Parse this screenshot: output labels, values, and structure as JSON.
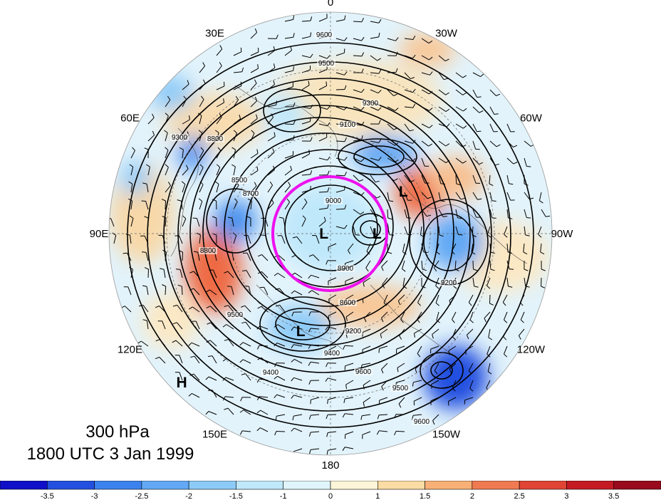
{
  "caption": {
    "level": "300 hPa",
    "time": "1800 UTC 3 Jan 1999"
  },
  "longitude_labels": [
    {
      "text": "0",
      "angle_deg": 0
    },
    {
      "text": "30W",
      "angle_deg": 30
    },
    {
      "text": "60W",
      "angle_deg": 60
    },
    {
      "text": "90W",
      "angle_deg": 90
    },
    {
      "text": "120W",
      "angle_deg": 120
    },
    {
      "text": "150W",
      "angle_deg": 150
    },
    {
      "text": "180",
      "angle_deg": 180
    },
    {
      "text": "150E",
      "angle_deg": 210
    },
    {
      "text": "120E",
      "angle_deg": 240
    },
    {
      "text": "90E",
      "angle_deg": 270
    },
    {
      "text": "60E",
      "angle_deg": 300
    },
    {
      "text": "30E",
      "angle_deg": 330
    }
  ],
  "pressure_centers": [
    {
      "label": "L",
      "lon_angle_deg": 60,
      "radius_frac": 0.38
    },
    {
      "label": "L",
      "lon_angle_deg": 270,
      "radius_frac": 0.03
    },
    {
      "label": "L",
      "lon_angle_deg": 90,
      "radius_frac": 0.21
    },
    {
      "label": "L",
      "lon_angle_deg": 197,
      "radius_frac": 0.46
    },
    {
      "label": "H",
      "lon_angle_deg": 225,
      "radius_frac": 0.95
    }
  ],
  "contour_labels": [
    "9600",
    "9500",
    "9300",
    "9100",
    "8800",
    "8500",
    "8700",
    "9000",
    "8900",
    "9200",
    "9400",
    "9600",
    "8600",
    "8800",
    "9500",
    "9400",
    "9600",
    "9300",
    "9200",
    "9500"
  ],
  "colorbar": {
    "tick_labels": [
      "-3.5",
      "-3",
      "-2.5",
      "-2",
      "-1.5",
      "-1",
      "0",
      "1",
      "1.5",
      "2",
      "2.5",
      "3",
      "3.5"
    ],
    "colors": [
      "#1010c8",
      "#2450e0",
      "#3c82ee",
      "#62a8f4",
      "#8ccaf8",
      "#bfe8fb",
      "#e0f4fb",
      "#fdf5d8",
      "#fbdca4",
      "#f8b076",
      "#f07a52",
      "#e04434",
      "#c41a24",
      "#980a1c"
    ]
  },
  "highlight_circle_color": "#ee10ee"
}
